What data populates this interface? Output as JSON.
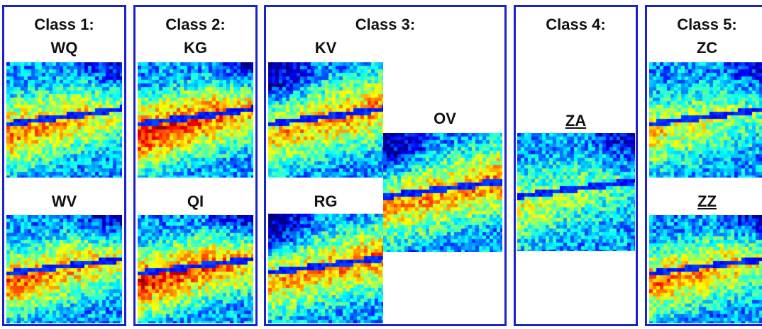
{
  "colors": {
    "frame": "#1a22c8"
  },
  "classes": [
    {
      "title": "Class 1:",
      "items": [
        "WQ",
        "WV"
      ]
    },
    {
      "title": "Class 2:",
      "items": [
        "KG",
        "QI"
      ]
    },
    {
      "title": "Class 3:",
      "items": [
        "KV",
        "OV",
        "RG"
      ]
    },
    {
      "title": "Class 4:",
      "items": [
        "ZA"
      ]
    },
    {
      "title": "Class 5:",
      "items": [
        "ZC",
        "ZZ"
      ]
    }
  ]
}
